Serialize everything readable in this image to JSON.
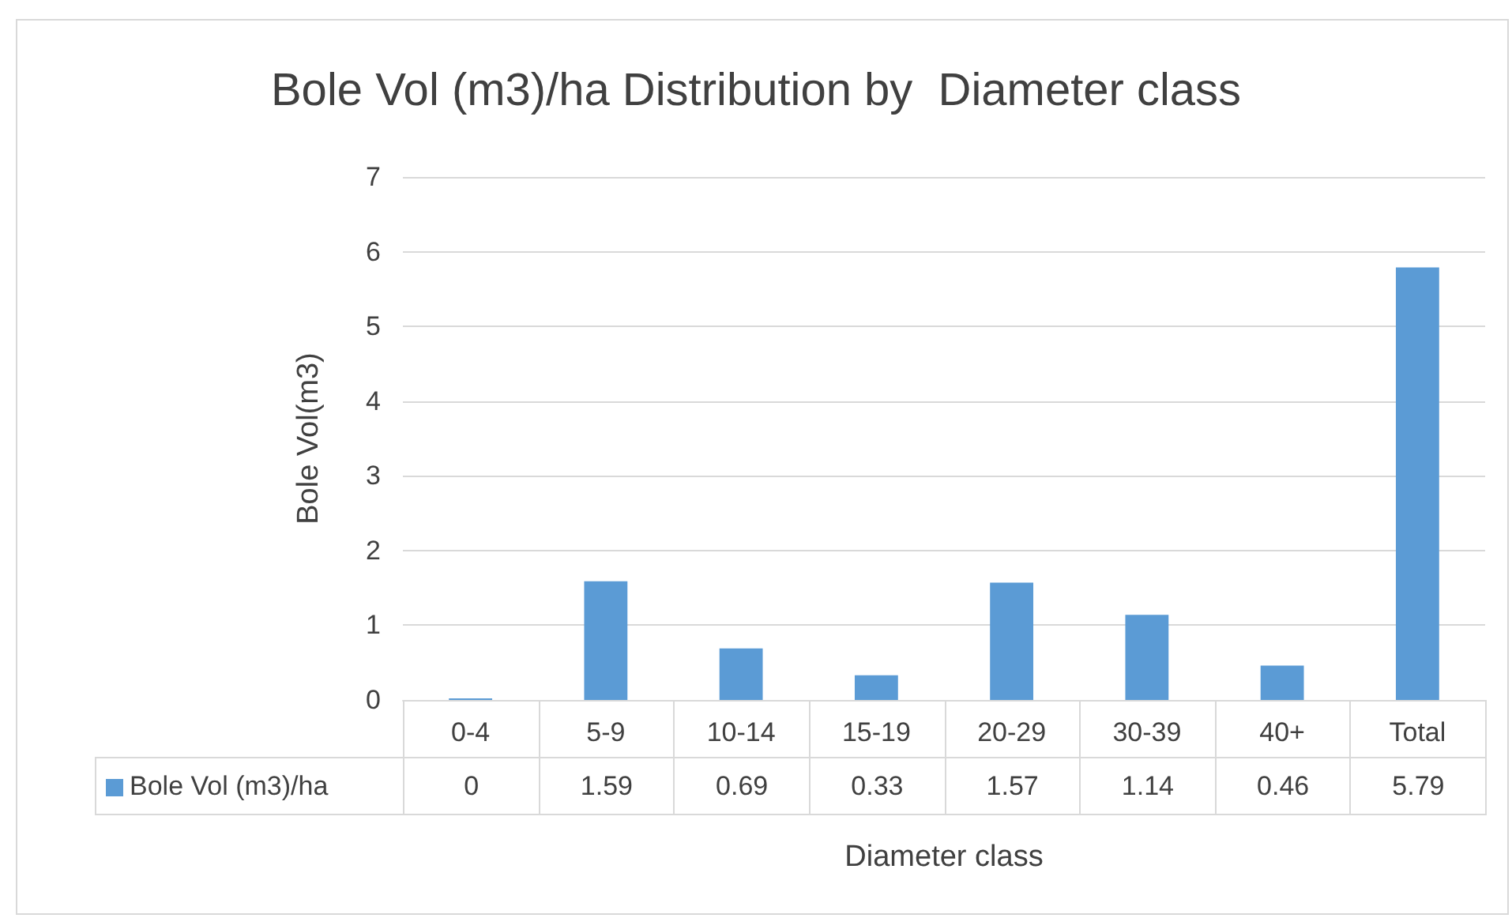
{
  "chart_data": {
    "type": "bar",
    "title": "Bole Vol (m3)/ha Distribution by  Diameter class",
    "xlabel": "Diameter class",
    "ylabel": "Bole Vol(m3)",
    "categories": [
      "0-4",
      "5-9",
      "10-14",
      "15-19",
      "20-29",
      "30-39",
      "40+",
      "Total"
    ],
    "series": [
      {
        "name": "Bole Vol (m3)/ha",
        "color": "#5b9bd5",
        "values": [
          0,
          1.59,
          0.69,
          0.33,
          1.57,
          1.14,
          0.46,
          5.79
        ]
      }
    ],
    "ylim": [
      0,
      7
    ],
    "yticks": [
      0,
      1,
      2,
      3,
      4,
      5,
      6,
      7
    ],
    "grid": "y",
    "legend": "bottom",
    "data_labels": true
  }
}
